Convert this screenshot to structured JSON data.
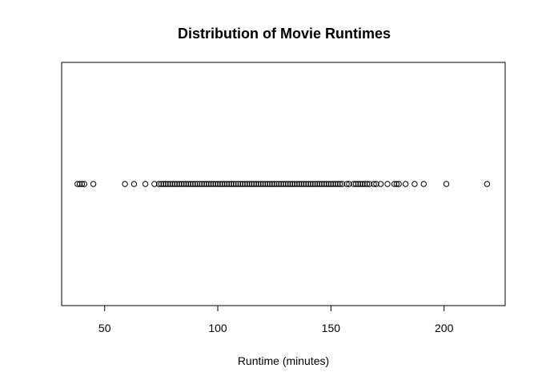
{
  "chart_data": {
    "type": "scatter",
    "title": "Distribution of Movie Runtimes",
    "xlabel": "Runtime (minutes)",
    "ylabel": "",
    "xlim": [
      31,
      227
    ],
    "x_ticks": [
      50,
      100,
      150,
      200
    ],
    "x_tick_labels": [
      "50",
      "100",
      "150",
      "200"
    ],
    "grid": false,
    "legend": "none",
    "point_color": "#000000",
    "background": "#ffffff",
    "values": [
      38,
      39,
      40,
      41,
      45,
      59,
      63,
      68,
      72,
      74,
      75,
      76,
      77,
      78,
      79,
      80,
      81,
      82,
      83,
      84,
      85,
      86,
      87,
      88,
      89,
      90,
      91,
      92,
      93,
      94,
      95,
      96,
      97,
      98,
      99,
      100,
      101,
      102,
      103,
      104,
      105,
      106,
      107,
      108,
      109,
      110,
      111,
      112,
      113,
      114,
      115,
      116,
      117,
      118,
      119,
      120,
      121,
      122,
      123,
      124,
      125,
      126,
      127,
      128,
      129,
      130,
      131,
      132,
      133,
      134,
      135,
      136,
      137,
      138,
      139,
      140,
      141,
      142,
      143,
      144,
      145,
      146,
      147,
      148,
      149,
      150,
      151,
      152,
      153,
      154,
      155,
      157,
      158,
      160,
      161,
      162,
      163,
      164,
      165,
      166,
      167,
      169,
      170,
      172,
      175,
      178,
      179,
      180,
      183,
      187,
      191,
      201,
      219
    ]
  }
}
